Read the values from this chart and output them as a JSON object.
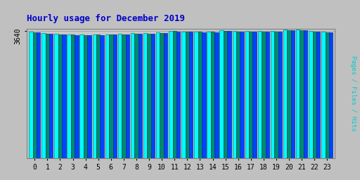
{
  "title": "Hourly usage for December 2019",
  "ylabel_right": "Pages / Files / Hits",
  "hours": [
    0,
    1,
    2,
    3,
    4,
    5,
    6,
    7,
    8,
    9,
    10,
    11,
    12,
    13,
    14,
    15,
    16,
    17,
    18,
    19,
    20,
    21,
    22,
    23
  ],
  "hits_values": [
    3610,
    3580,
    3558,
    3545,
    3540,
    3542,
    3548,
    3556,
    3572,
    3576,
    3592,
    3642,
    3626,
    3624,
    3622,
    3652,
    3632,
    3632,
    3630,
    3632,
    3672,
    3670,
    3638,
    3612
  ],
  "files_values": [
    3596,
    3568,
    3548,
    3533,
    3528,
    3530,
    3536,
    3540,
    3558,
    3562,
    3580,
    3632,
    3616,
    3614,
    3610,
    3640,
    3620,
    3620,
    3618,
    3620,
    3660,
    3658,
    3626,
    3598
  ],
  "pages_values": [
    3590,
    3562,
    3542,
    3527,
    3522,
    3524,
    3530,
    3534,
    3552,
    3556,
    3574,
    3626,
    3610,
    3608,
    3604,
    3634,
    3614,
    3614,
    3612,
    3614,
    3654,
    3652,
    3620,
    3592
  ],
  "hits_color": "#00FFFF",
  "files_color": "#008B6E",
  "pages_color": "#0044FF",
  "bg_color": "#C0C0C0",
  "plot_bg_color": "#C8C8C8",
  "title_color": "#0000CC",
  "ylabel_color": "#00CCCC",
  "ymin": 0,
  "ymax": 3700,
  "ytick_val": 3640,
  "ytick_label": "3640"
}
